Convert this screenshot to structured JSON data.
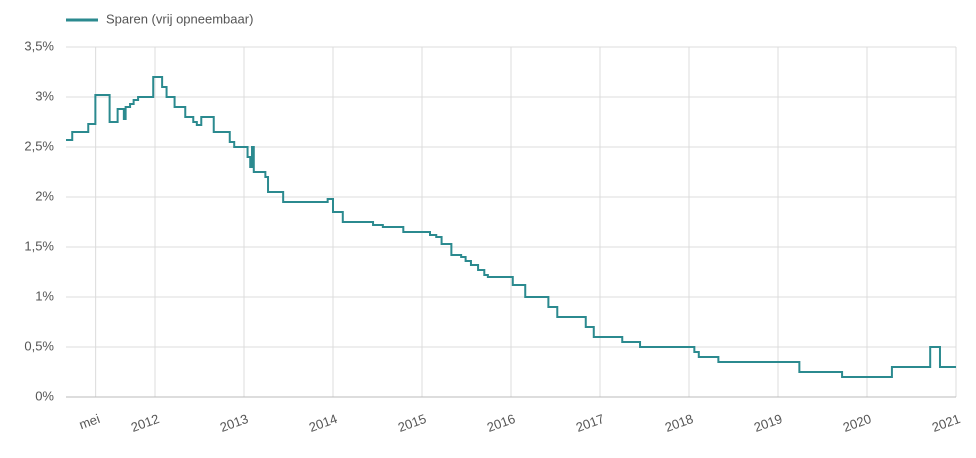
{
  "chart_data": {
    "type": "line",
    "step": "after",
    "series": [
      {
        "name": "Sparen (vrij opneembaar)",
        "color": "#2b8a8f",
        "x": [
          2011.0,
          2011.07,
          2011.25,
          2011.33,
          2011.49,
          2011.58,
          2011.65,
          2011.67,
          2011.72,
          2011.76,
          2011.81,
          2011.98,
          2012.08,
          2012.13,
          2012.22,
          2012.34,
          2012.43,
          2012.47,
          2012.52,
          2012.66,
          2012.84,
          2012.89,
          2013.04,
          2013.07,
          2013.09,
          2013.11,
          2013.24,
          2013.27,
          2013.44,
          2013.94,
          2014.0,
          2014.11,
          2014.45,
          2014.56,
          2014.79,
          2015.09,
          2015.16,
          2015.22,
          2015.33,
          2015.44,
          2015.49,
          2015.55,
          2015.63,
          2015.7,
          2015.74,
          2016.02,
          2016.16,
          2016.42,
          2016.52,
          2016.84,
          2016.93,
          2017.25,
          2017.45,
          2018.06,
          2018.11,
          2018.33,
          2019.24,
          2019.72,
          2020.28,
          2020.71,
          2020.82,
          2021.0
        ],
        "values": [
          2.57,
          2.65,
          2.73,
          3.02,
          2.75,
          2.88,
          2.78,
          2.9,
          2.93,
          2.97,
          3.0,
          3.2,
          3.1,
          3.0,
          2.9,
          2.8,
          2.75,
          2.72,
          2.8,
          2.65,
          2.55,
          2.5,
          2.4,
          2.3,
          2.5,
          2.25,
          2.2,
          2.05,
          1.95,
          1.98,
          1.85,
          1.75,
          1.72,
          1.7,
          1.65,
          1.62,
          1.6,
          1.53,
          1.42,
          1.4,
          1.36,
          1.32,
          1.27,
          1.22,
          1.2,
          1.12,
          1.0,
          0.9,
          0.8,
          0.7,
          0.6,
          0.55,
          0.5,
          0.45,
          0.4,
          0.35,
          0.25,
          0.2,
          0.3,
          0.5,
          0.3,
          0.3
        ]
      }
    ],
    "xlim": [
      2011,
      2021
    ],
    "xticks": [
      {
        "value": 2011.333,
        "label": "mei"
      },
      2012,
      2013,
      2014,
      2015,
      2016,
      2017,
      2018,
      2019,
      2020,
      2021
    ],
    "ylim": [
      0,
      3.5
    ],
    "yticks": [
      {
        "value": 0,
        "label": "0%"
      },
      {
        "value": 0.5,
        "label": "0,5%"
      },
      {
        "value": 1,
        "label": "1%"
      },
      {
        "value": 1.5,
        "label": "1,5%"
      },
      {
        "value": 2,
        "label": "2%"
      },
      {
        "value": 2.5,
        "label": "2,5%"
      },
      {
        "value": 3,
        "label": "3%"
      },
      {
        "value": 3.5,
        "label": "3,5%"
      }
    ],
    "grid": true,
    "legend": "top-left"
  }
}
